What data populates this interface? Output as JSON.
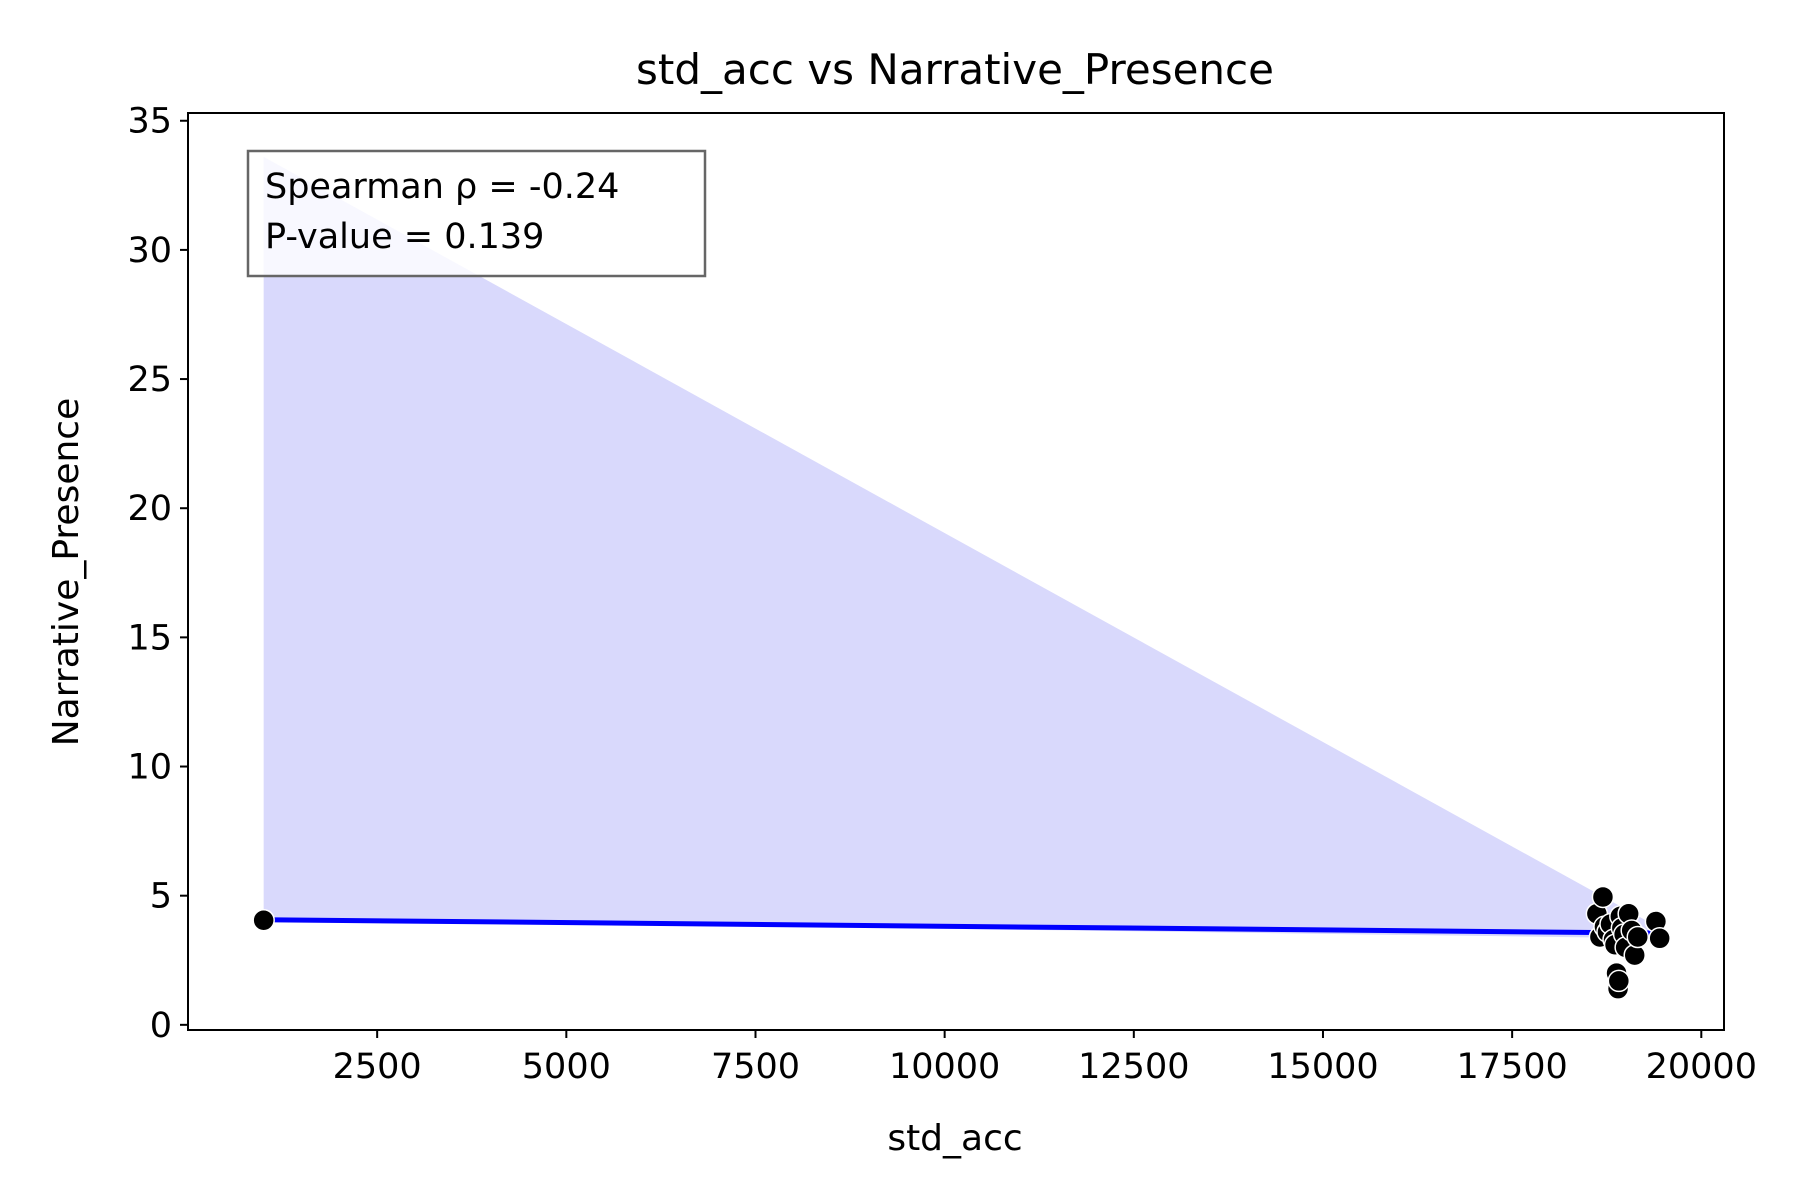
{
  "chart_data": {
    "type": "scatter",
    "title": "std_acc vs Narrative_Presence",
    "xlabel": "std_acc",
    "ylabel": "Narrative_Presence",
    "xlim": [
      0,
      20300
    ],
    "ylim": [
      -0.2,
      35.3
    ],
    "xticks": [
      2500,
      5000,
      7500,
      10000,
      12500,
      15000,
      17500,
      20000
    ],
    "yticks": [
      0,
      5,
      10,
      15,
      20,
      25,
      30,
      35
    ],
    "grid": false,
    "colors": {
      "points": "#000000",
      "point_edge": "#ffffff",
      "regression_line": "#0000ff",
      "confidence_band": "#d9d9fc",
      "annotation_border": "#666666"
    },
    "annotation": {
      "lines": [
        "Spearman ρ = -0.24",
        "P-value = 0.139"
      ],
      "placement": "top-left"
    },
    "regression": {
      "x": [
        1000,
        19450
      ],
      "y": [
        4.07,
        3.55
      ]
    },
    "confidence_band": {
      "x": [
        1000,
        19450
      ],
      "upper": [
        33.6,
        3.75
      ],
      "lower": [
        4.07,
        3.35
      ]
    },
    "points": [
      {
        "x": 1000,
        "y": 4.05
      },
      {
        "x": 18620,
        "y": 4.3
      },
      {
        "x": 18660,
        "y": 3.4
      },
      {
        "x": 18700,
        "y": 4.95
      },
      {
        "x": 18720,
        "y": 3.8
      },
      {
        "x": 18760,
        "y": 3.6
      },
      {
        "x": 18800,
        "y": 3.9
      },
      {
        "x": 18840,
        "y": 3.3
      },
      {
        "x": 18860,
        "y": 3.1
      },
      {
        "x": 18880,
        "y": 2.0
      },
      {
        "x": 18900,
        "y": 1.4
      },
      {
        "x": 18910,
        "y": 1.7
      },
      {
        "x": 18930,
        "y": 4.2
      },
      {
        "x": 18950,
        "y": 3.75
      },
      {
        "x": 18980,
        "y": 3.5
      },
      {
        "x": 19000,
        "y": 3.0
      },
      {
        "x": 19040,
        "y": 4.3
      },
      {
        "x": 19080,
        "y": 3.65
      },
      {
        "x": 19120,
        "y": 2.7
      },
      {
        "x": 19160,
        "y": 3.4
      },
      {
        "x": 19400,
        "y": 4.0
      },
      {
        "x": 19450,
        "y": 3.35
      }
    ]
  }
}
